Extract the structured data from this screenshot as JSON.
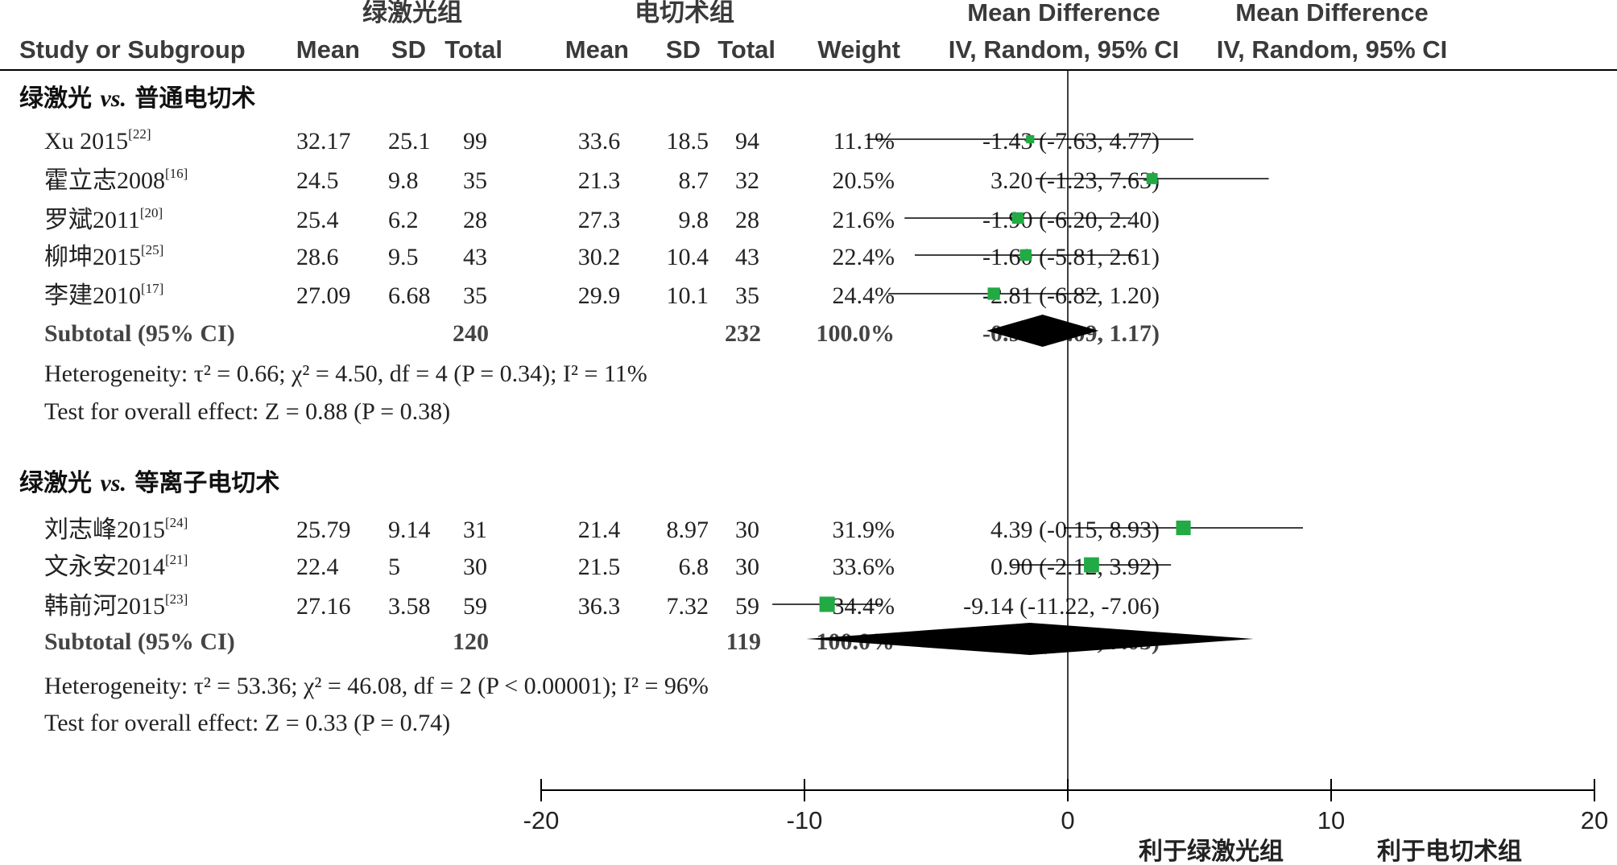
{
  "header": {
    "group1_title": "绿激光组",
    "group2_title": "电切术组",
    "md_col_title": "Mean Difference",
    "md_col_method": "IV, Random, 95% CI",
    "plot_col_title": "Mean Difference",
    "plot_col_method": "IV, Random, 95% CI",
    "study_col": "Study or Subgroup",
    "mean": "Mean",
    "sd": "SD",
    "total": "Total",
    "weight": "Weight"
  },
  "chart_data": {
    "type": "forest",
    "axis": {
      "xmin": -20,
      "xmax": 20,
      "ticks": [
        "-20",
        "-10",
        "0",
        "10",
        "20"
      ],
      "tick_values": [
        -20,
        -10,
        0,
        10,
        20
      ]
    },
    "favours_left": "利于绿激光组",
    "favours_right": "利于电切术组",
    "subgroups": [
      {
        "title_a": "绿激光 ",
        "title_vs": "vs.",
        "title_b": " 普通电切术",
        "studies": [
          {
            "name": "Xu 2015",
            "ref": "[22]",
            "m1": "32.17",
            "sd1": "25.1",
            "n1": "99",
            "m2": "33.6",
            "sd2": "18.5",
            "n2": "94",
            "weight": "11.1%",
            "ci": "-1.43 (-7.63, 4.77)",
            "md": -1.43,
            "lo": -7.63,
            "hi": 4.77,
            "w": 11.1
          },
          {
            "name": "霍立志2008",
            "ref": "[16]",
            "m1": "24.5",
            "sd1": "9.8",
            "n1": "35",
            "m2": "21.3",
            "sd2": "8.7",
            "n2": "32",
            "weight": "20.5%",
            "ci": "3.20 (-1.23, 7.63)",
            "md": 3.2,
            "lo": -1.23,
            "hi": 7.63,
            "w": 20.5
          },
          {
            "name": "罗斌2011",
            "ref": "[20]",
            "m1": "25.4",
            "sd1": "6.2",
            "n1": "28",
            "m2": "27.3",
            "sd2": "9.8",
            "n2": "28",
            "weight": "21.6%",
            "ci": "-1.90 (-6.20, 2.40)",
            "md": -1.9,
            "lo": -6.2,
            "hi": 2.4,
            "w": 21.6
          },
          {
            "name": "柳坤2015",
            "ref": "[25]",
            "m1": "28.6",
            "sd1": "9.5",
            "n1": "43",
            "m2": "30.2",
            "sd2": "10.4",
            "n2": "43",
            "weight": "22.4%",
            "ci": "-1.60 (-5.81, 2.61)",
            "md": -1.6,
            "lo": -5.81,
            "hi": 2.61,
            "w": 22.4
          },
          {
            "name": "李建2010",
            "ref": "[17]",
            "m1": "27.09",
            "sd1": "6.68",
            "n1": "35",
            "m2": "29.9",
            "sd2": "10.1",
            "n2": "35",
            "weight": "24.4%",
            "ci": "-2.81 (-6.82, 1.20)",
            "md": -2.81,
            "lo": -6.82,
            "hi": 1.2,
            "w": 24.4
          }
        ],
        "subtotal": {
          "label": "Subtotal (95% CI)",
          "n1": "240",
          "n2": "232",
          "weight": "100.0%",
          "ci": "-0.96 (-3.09, 1.17)",
          "md": -0.96,
          "lo": -3.09,
          "hi": 1.17
        },
        "heterogeneity": "Heterogeneity: τ² = 0.66; χ² = 4.50, df = 4 (P = 0.34); I² = 11%",
        "overall": "Test for overall effect: Z = 0.88 (P = 0.38)"
      },
      {
        "title_a": "绿激光 ",
        "title_vs": "vs.",
        "title_b": " 等离子电切术",
        "studies": [
          {
            "name": "刘志峰2015",
            "ref": "[24]",
            "m1": "25.79",
            "sd1": "9.14",
            "n1": "31",
            "m2": "21.4",
            "sd2": "8.97",
            "n2": "30",
            "weight": "31.9%",
            "ci": "4.39 (-0.15, 8.93)",
            "md": 4.39,
            "lo": -0.15,
            "hi": 8.93,
            "w": 31.9
          },
          {
            "name": "文永安2014",
            "ref": "[21]",
            "m1": "22.4",
            "sd1": "5",
            "n1": "30",
            "m2": "21.5",
            "sd2": "6.8",
            "n2": "30",
            "weight": "33.6%",
            "ci": "0.90 (-2.12, 3.92)",
            "md": 0.9,
            "lo": -2.12,
            "hi": 3.92,
            "w": 33.6
          },
          {
            "name": "韩前河2015",
            "ref": "[23]",
            "m1": "27.16",
            "sd1": "3.58",
            "n1": "59",
            "m2": "36.3",
            "sd2": "7.32",
            "n2": "59",
            "weight": "34.4%",
            "ci": "-9.14 (-11.22, -7.06)",
            "md": -9.14,
            "lo": -11.22,
            "hi": -7.06,
            "w": 34.4
          }
        ],
        "subtotal": {
          "label": "Subtotal (95% CI)",
          "n1": "120",
          "n2": "119",
          "weight": "100.0%",
          "ci": "-1.44 (-9.93, 7.05)",
          "md": -1.44,
          "lo": -9.93,
          "hi": 7.05
        },
        "heterogeneity": "Heterogeneity: τ² = 53.36; χ² = 46.08, df = 2 (P < 0.00001); I² = 96%",
        "overall": "Test for overall effect: Z = 0.33 (P = 0.74)"
      }
    ],
    "colors": {
      "marker": "#22aa44",
      "diamond": "#000000",
      "line": "#000000"
    }
  }
}
